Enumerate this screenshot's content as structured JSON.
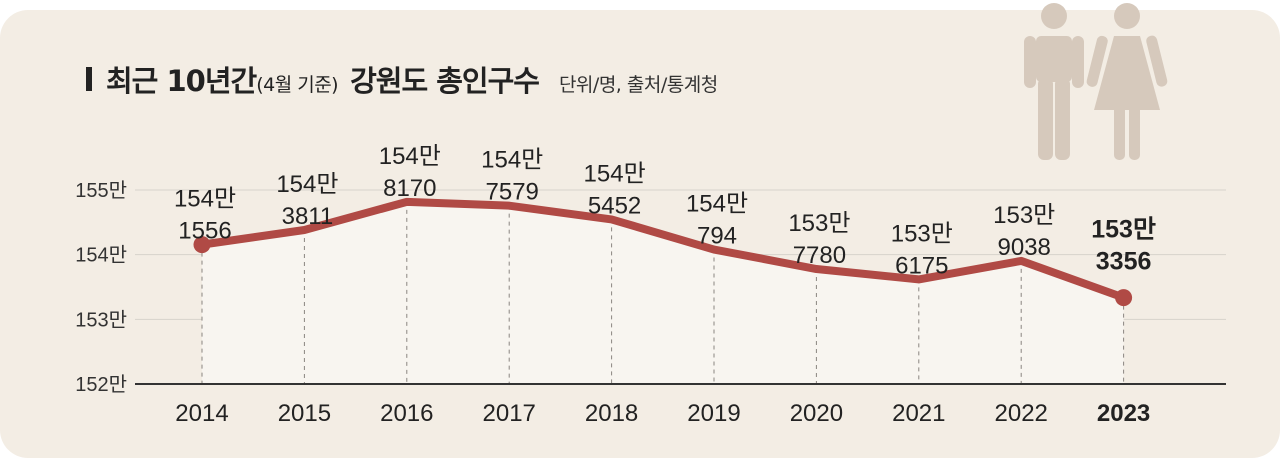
{
  "title": {
    "main": "최근 10년간",
    "period": "(4월 기준)",
    "region": "강원도 총인구수",
    "unit_source": "단위/명, 출처/통계청"
  },
  "icons": {
    "figures": "man-woman-icon"
  },
  "colors": {
    "background": "#f3ede4",
    "line": "#b04a45",
    "area": "#f8f5f0",
    "grid": "#d7d2cb",
    "axis": "#333333",
    "text": "#222222"
  },
  "chart_data": {
    "type": "line",
    "title": "최근 10년간(4월 기준) 강원도 총인구수",
    "xlabel": "",
    "ylabel": "",
    "unit": "명",
    "categories": [
      "2014",
      "2015",
      "2016",
      "2017",
      "2018",
      "2019",
      "2020",
      "2021",
      "2022",
      "2023"
    ],
    "values": [
      1541556,
      1543811,
      1548170,
      1547579,
      1545452,
      1540794,
      1537780,
      1536175,
      1539038,
      1533356
    ],
    "labels": [
      [
        "154만",
        "1556"
      ],
      [
        "154만",
        "3811"
      ],
      [
        "154만",
        "8170"
      ],
      [
        "154만",
        "7579"
      ],
      [
        "154만",
        "5452"
      ],
      [
        "154만",
        "794"
      ],
      [
        "153만",
        "7780"
      ],
      [
        "153만",
        "6175"
      ],
      [
        "153만",
        "9038"
      ],
      [
        "153만",
        "3356"
      ]
    ],
    "ylim": [
      1520000,
      1550000
    ],
    "yticks": [
      {
        "value": 1520000,
        "label": "152만"
      },
      {
        "value": 1530000,
        "label": "153만"
      },
      {
        "value": 1540000,
        "label": "154만"
      },
      {
        "value": 1550000,
        "label": "155만"
      }
    ],
    "highlight_index": 9,
    "grid": true
  }
}
